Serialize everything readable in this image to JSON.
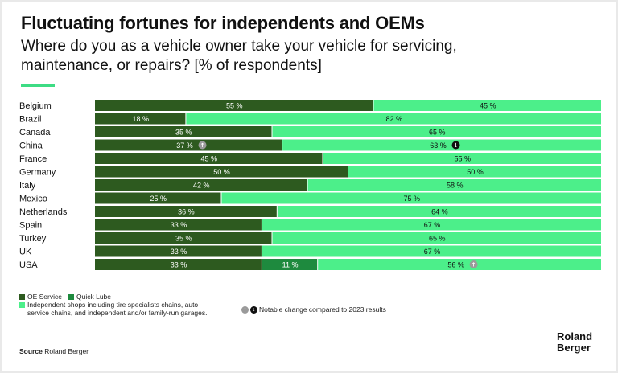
{
  "title": "Fluctuating fortunes for independents and OEMs",
  "subtitle": "Where do you as a vehicle owner take your vehicle for servicing, maintenance, or repairs? [% of respondents]",
  "colors": {
    "oe": "#2d5a1f",
    "quick": "#1e8a3e",
    "indep": "#4cef8a",
    "accent": "#3ddc84"
  },
  "chart_data": {
    "type": "bar",
    "orientation": "horizontal",
    "stacked": true,
    "xlim": [
      0,
      100
    ],
    "categories": [
      "Belgium",
      "Brazil",
      "Canada",
      "China",
      "France",
      "Germany",
      "Italy",
      "Mexico",
      "Netherlands",
      "Spain",
      "Turkey",
      "UK",
      "USA"
    ],
    "series": [
      {
        "name": "OE Service",
        "color": "#2d5a1f",
        "values": [
          55,
          18,
          35,
          37,
          45,
          50,
          42,
          25,
          36,
          33,
          35,
          33,
          33
        ]
      },
      {
        "name": "Quick Lube",
        "color": "#1e8a3e",
        "values": [
          0,
          0,
          0,
          0,
          0,
          0,
          0,
          0,
          0,
          0,
          0,
          0,
          11
        ]
      },
      {
        "name": "Independent shops including tire specialists chains, auto service chains, and independent and/or family-run garages.",
        "color": "#4cef8a",
        "values": [
          45,
          82,
          65,
          63,
          55,
          50,
          58,
          75,
          64,
          67,
          65,
          67,
          56
        ]
      }
    ],
    "value_suffix": "%",
    "notable_changes": [
      {
        "category": "China",
        "series": 0,
        "direction": "up"
      },
      {
        "category": "China",
        "series": 2,
        "direction": "down"
      },
      {
        "category": "USA",
        "series": 2,
        "direction": "up"
      }
    ]
  },
  "legend": {
    "oe": "OE Service",
    "quick": "Quick Lube",
    "indep_line1": "Independent shops including tire specialists chains, auto",
    "indep_line2": "service chains, and independent and/or family-run garages.",
    "notable": "Notable change compared to 2023 results",
    "up_icon": "↑",
    "down_icon": "↓"
  },
  "source": {
    "label": "Source",
    "text": "Roland Berger"
  },
  "logo": {
    "line1": "Roland",
    "line2": "Berger"
  }
}
